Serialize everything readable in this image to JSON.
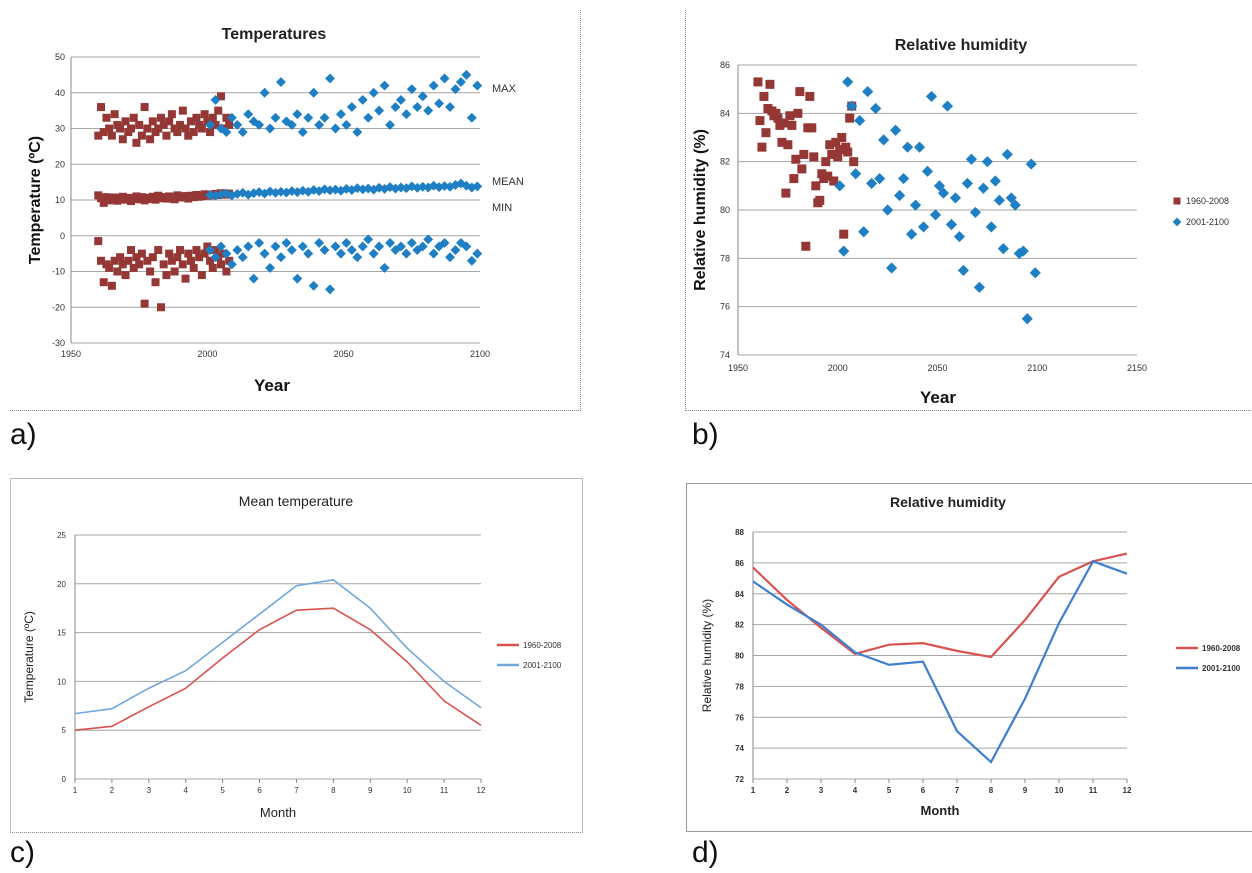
{
  "panels": [
    {
      "label": "a)"
    },
    {
      "label": "b)"
    },
    {
      "label": "c)"
    },
    {
      "label": "d)"
    }
  ],
  "colors": {
    "red_marker": "#953735",
    "blue_marker": "#1f7fc4",
    "red_line": "#d9534f",
    "blue_line": "#6fa8dc",
    "red_line_d": "#d9534f",
    "blue_line_d": "#3f7fd0",
    "grid": "#a6a6a6"
  },
  "chart_data": [
    {
      "type": "scatter",
      "title": "Temperatures",
      "xlabel": "Year",
      "ylabel": "Temperature (ºC)",
      "xlim": [
        1950,
        2100
      ],
      "ylim": [
        -30,
        50
      ],
      "xticks": [
        1950,
        2000,
        2050,
        2100
      ],
      "yticks": [
        -30,
        -20,
        -10,
        0,
        10,
        20,
        30,
        40,
        50
      ],
      "grid": "horizontal",
      "annotations": [
        "MAX",
        "MEAN",
        "MIN"
      ],
      "series": [
        {
          "group": "MAX",
          "period": "1960-2008",
          "marker": "square",
          "x": [
            1960,
            1961,
            1962,
            1963,
            1964,
            1965,
            1966,
            1967,
            1968,
            1969,
            1970,
            1971,
            1972,
            1973,
            1974,
            1975,
            1976,
            1977,
            1978,
            1979,
            1980,
            1981,
            1982,
            1983,
            1984,
            1985,
            1986,
            1987,
            1988,
            1989,
            1990,
            1991,
            1992,
            1993,
            1994,
            1995,
            1996,
            1997,
            1998,
            1999,
            2000,
            2001,
            2002,
            2003,
            2004,
            2005,
            2006,
            2007,
            2008
          ],
          "y": [
            28,
            36,
            29,
            33,
            30,
            28,
            34,
            31,
            30,
            27,
            32,
            29,
            30,
            33,
            26,
            31,
            28,
            36,
            30,
            27,
            32,
            29,
            30,
            33,
            31,
            28,
            32,
            34,
            30,
            29,
            31,
            35,
            30,
            28,
            32,
            29,
            33,
            31,
            30,
            34,
            32,
            29,
            33,
            31,
            35,
            39,
            30,
            33,
            31
          ]
        },
        {
          "group": "MAX",
          "period": "2001-2100",
          "marker": "diamond",
          "x": [
            2001,
            2003,
            2005,
            2007,
            2009,
            2011,
            2013,
            2015,
            2017,
            2019,
            2021,
            2023,
            2025,
            2027,
            2029,
            2031,
            2033,
            2035,
            2037,
            2039,
            2041,
            2043,
            2045,
            2047,
            2049,
            2051,
            2053,
            2055,
            2057,
            2059,
            2061,
            2063,
            2065,
            2067,
            2069,
            2071,
            2073,
            2075,
            2077,
            2079,
            2081,
            2083,
            2085,
            2087,
            2089,
            2091,
            2093,
            2095,
            2097,
            2099
          ],
          "y": [
            31,
            38,
            30,
            29,
            33,
            31,
            29,
            34,
            32,
            31,
            40,
            30,
            33,
            43,
            32,
            31,
            34,
            29,
            33,
            40,
            31,
            33,
            44,
            30,
            34,
            31,
            36,
            29,
            38,
            33,
            40,
            35,
            42,
            31,
            36,
            38,
            34,
            41,
            36,
            39,
            35,
            42,
            37,
            44,
            36,
            41,
            43,
            45,
            33,
            42
          ]
        },
        {
          "group": "MEAN",
          "period": "1960-2008",
          "marker": "square",
          "x": [
            1960,
            1961,
            1962,
            1963,
            1964,
            1965,
            1966,
            1967,
            1968,
            1969,
            1970,
            1971,
            1972,
            1973,
            1974,
            1975,
            1976,
            1977,
            1978,
            1979,
            1980,
            1981,
            1982,
            1983,
            1984,
            1985,
            1986,
            1987,
            1988,
            1989,
            1990,
            1991,
            1992,
            1993,
            1994,
            1995,
            1996,
            1997,
            1998,
            1999,
            2000,
            2001,
            2002,
            2003,
            2004,
            2005,
            2006,
            2007,
            2008
          ],
          "y": [
            11.3,
            10.5,
            9.2,
            10.8,
            9.9,
            10.4,
            10.7,
            9.8,
            10.3,
            10.9,
            10.1,
            10.6,
            9.7,
            10.4,
            11,
            10.2,
            10.8,
            9.9,
            10.6,
            10.3,
            10.9,
            10.1,
            11.2,
            10.5,
            10.8,
            10.4,
            11,
            10.6,
            10.2,
            11.3,
            10.7,
            10.9,
            11.1,
            10.4,
            11.2,
            10.8,
            11.4,
            10.9,
            11.1,
            11.6,
            11.2,
            11.5,
            11.3,
            11.7,
            11.4,
            11.9,
            11.6,
            11.5,
            11.8
          ]
        },
        {
          "group": "MEAN",
          "period": "2001-2100",
          "marker": "diamond",
          "x": [
            2001,
            2003,
            2005,
            2007,
            2009,
            2011,
            2013,
            2015,
            2017,
            2019,
            2021,
            2023,
            2025,
            2027,
            2029,
            2031,
            2033,
            2035,
            2037,
            2039,
            2041,
            2043,
            2045,
            2047,
            2049,
            2051,
            2053,
            2055,
            2057,
            2059,
            2061,
            2063,
            2065,
            2067,
            2069,
            2071,
            2073,
            2075,
            2077,
            2079,
            2081,
            2083,
            2085,
            2087,
            2089,
            2091,
            2093,
            2095,
            2097,
            2099
          ],
          "y": [
            11.4,
            11.2,
            11.6,
            11.8,
            11.3,
            11.7,
            12,
            11.5,
            11.9,
            12.2,
            11.8,
            12.4,
            12,
            12.3,
            12.1,
            12.5,
            12.2,
            12.6,
            12.3,
            12.8,
            12.5,
            13,
            12.7,
            12.9,
            12.6,
            13.1,
            12.8,
            13.3,
            13,
            13.2,
            12.9,
            13.4,
            13.1,
            13.6,
            13.2,
            13.5,
            13.3,
            13.8,
            13.4,
            13.7,
            13.5,
            14,
            13.6,
            13.9,
            13.7,
            14.2,
            14.6,
            14,
            13.5,
            13.8
          ]
        },
        {
          "group": "MIN",
          "period": "1960-2008",
          "marker": "square",
          "x": [
            1960,
            1961,
            1962,
            1963,
            1964,
            1965,
            1966,
            1967,
            1968,
            1969,
            1970,
            1971,
            1972,
            1973,
            1974,
            1975,
            1976,
            1977,
            1978,
            1979,
            1980,
            1981,
            1982,
            1983,
            1984,
            1985,
            1986,
            1987,
            1988,
            1989,
            1990,
            1991,
            1992,
            1993,
            1994,
            1995,
            1996,
            1997,
            1998,
            1999,
            2000,
            2001,
            2002,
            2003,
            2004,
            2005,
            2006,
            2007,
            2008
          ],
          "y": [
            -1.5,
            -7,
            -13,
            -8,
            -9,
            -14,
            -7,
            -10,
            -6,
            -8,
            -11,
            -7,
            -4,
            -9,
            -6,
            -8,
            -5,
            -19,
            -7,
            -10,
            -6,
            -13,
            -4,
            -20,
            -8,
            -11,
            -5,
            -7,
            -10,
            -6,
            -4,
            -8,
            -12,
            -5,
            -7,
            -9,
            -4,
            -6,
            -11,
            -5,
            -3,
            -7,
            -9,
            -4,
            -6,
            -8,
            -5,
            -10,
            -7
          ]
        },
        {
          "group": "MIN",
          "period": "2001-2100",
          "marker": "diamond",
          "x": [
            2001,
            2003,
            2005,
            2007,
            2009,
            2011,
            2013,
            2015,
            2017,
            2019,
            2021,
            2023,
            2025,
            2027,
            2029,
            2031,
            2033,
            2035,
            2037,
            2039,
            2041,
            2043,
            2045,
            2047,
            2049,
            2051,
            2053,
            2055,
            2057,
            2059,
            2061,
            2063,
            2065,
            2067,
            2069,
            2071,
            2073,
            2075,
            2077,
            2079,
            2081,
            2083,
            2085,
            2087,
            2089,
            2091,
            2093,
            2095,
            2097,
            2099
          ],
          "y": [
            -4,
            -6,
            -3,
            -5,
            -8,
            -4,
            -6,
            -3,
            -12,
            -2,
            -5,
            -9,
            -3,
            -6,
            -2,
            -4,
            -12,
            -3,
            -5,
            -14,
            -2,
            -4,
            -15,
            -3,
            -5,
            -2,
            -4,
            -6,
            -3,
            -1,
            -5,
            -3,
            -9,
            -2,
            -4,
            -3,
            -5,
            -2,
            -4,
            -3,
            -1,
            -5,
            -3,
            -2,
            -6,
            -4,
            -2,
            -3,
            -7,
            -5
          ]
        }
      ]
    },
    {
      "type": "scatter",
      "title": "Relative humidity",
      "xlabel": "Year",
      "ylabel": "Relative humidity (%)",
      "xlim": [
        1950,
        2150
      ],
      "ylim": [
        74,
        86
      ],
      "xticks": [
        1950,
        2000,
        2050,
        2100,
        2150
      ],
      "yticks": [
        74,
        76,
        78,
        80,
        82,
        84,
        86
      ],
      "grid": "horizontal",
      "legend": "right",
      "series": [
        {
          "name": "1960-2008",
          "marker": "square",
          "x": [
            1960,
            1961,
            1962,
            1963,
            1964,
            1965,
            1966,
            1967,
            1968,
            1969,
            1970,
            1971,
            1972,
            1973,
            1974,
            1975,
            1976,
            1977,
            1978,
            1979,
            1980,
            1981,
            1982,
            1983,
            1984,
            1985,
            1986,
            1987,
            1988,
            1989,
            1990,
            1991,
            1992,
            1993,
            1994,
            1995,
            1996,
            1997,
            1998,
            1999,
            2000,
            2001,
            2002,
            2003,
            2004,
            2005,
            2006,
            2007,
            2008
          ],
          "y": [
            85.3,
            83.7,
            82.6,
            84.7,
            83.2,
            84.2,
            85.2,
            84.1,
            83.9,
            84,
            83.8,
            83.5,
            82.8,
            83.6,
            80.7,
            82.7,
            83.9,
            83.5,
            81.3,
            82.1,
            84,
            84.9,
            81.7,
            82.3,
            78.5,
            83.4,
            84.7,
            83.4,
            82.2,
            81,
            80.3,
            80.4,
            81.5,
            81.3,
            82,
            81.4,
            82.7,
            82.3,
            81.2,
            82.8,
            82.2,
            82.5,
            83,
            79,
            82.6,
            82.4,
            83.8,
            84.3,
            82
          ]
        },
        {
          "name": "2001-2100",
          "marker": "diamond",
          "x": [
            2001,
            2003,
            2005,
            2007,
            2009,
            2011,
            2013,
            2015,
            2017,
            2019,
            2021,
            2023,
            2025,
            2027,
            2029,
            2031,
            2033,
            2035,
            2037,
            2039,
            2041,
            2043,
            2045,
            2047,
            2049,
            2051,
            2053,
            2055,
            2057,
            2059,
            2061,
            2063,
            2065,
            2067,
            2069,
            2071,
            2073,
            2075,
            2077,
            2079,
            2081,
            2083,
            2085,
            2087,
            2089,
            2091,
            2093,
            2095,
            2097,
            2099
          ],
          "y": [
            81,
            78.3,
            85.3,
            84.3,
            81.5,
            83.7,
            79.1,
            84.9,
            81.1,
            84.2,
            81.3,
            82.9,
            80,
            77.6,
            83.3,
            80.6,
            81.3,
            82.6,
            79,
            80.2,
            82.6,
            79.3,
            81.6,
            84.7,
            79.8,
            81,
            80.7,
            84.3,
            79.4,
            80.5,
            78.9,
            77.5,
            81.1,
            82.1,
            79.9,
            76.8,
            80.9,
            82,
            79.3,
            81.2,
            80.4,
            78.4,
            82.3,
            80.5,
            80.2,
            78.2,
            78.3,
            75.5,
            81.9,
            77.4
          ]
        }
      ]
    },
    {
      "type": "line",
      "title": "Mean temperature",
      "xlabel": "Month",
      "ylabel": "Temperature (ºC)",
      "categories": [
        1,
        2,
        3,
        4,
        5,
        6,
        7,
        8,
        9,
        10,
        11,
        12
      ],
      "ylim": [
        0,
        25
      ],
      "yticks": [
        0,
        5,
        10,
        15,
        20,
        25
      ],
      "grid": "horizontal",
      "legend": "right",
      "series": [
        {
          "name": "1960-2008",
          "values": [
            5,
            5.4,
            7.4,
            9.3,
            12.4,
            15.3,
            17.3,
            17.5,
            15.3,
            12,
            8,
            5.5
          ]
        },
        {
          "name": "2001-2100",
          "values": [
            6.7,
            7.2,
            9.3,
            11.1,
            14,
            16.9,
            19.8,
            20.4,
            17.5,
            13.4,
            10,
            7.3
          ]
        }
      ]
    },
    {
      "type": "line",
      "title": "Relative humidity",
      "xlabel": "Month",
      "ylabel": "Relative humidity (%)",
      "categories": [
        1,
        2,
        3,
        4,
        5,
        6,
        7,
        8,
        9,
        10,
        11,
        12
      ],
      "ylim": [
        72,
        88
      ],
      "yticks": [
        72,
        74,
        76,
        78,
        80,
        82,
        84,
        86,
        88
      ],
      "grid": "horizontal",
      "legend": "right",
      "series": [
        {
          "name": "1960-2008",
          "values": [
            85.7,
            83.6,
            81.8,
            80.1,
            80.7,
            80.8,
            80.3,
            79.9,
            82.3,
            85.1,
            86.1,
            86.6
          ]
        },
        {
          "name": "2001-2100",
          "values": [
            84.8,
            83.3,
            82,
            80.2,
            79.4,
            79.6,
            75.1,
            73.1,
            77.2,
            82.1,
            86.1,
            85.3
          ]
        }
      ]
    }
  ]
}
